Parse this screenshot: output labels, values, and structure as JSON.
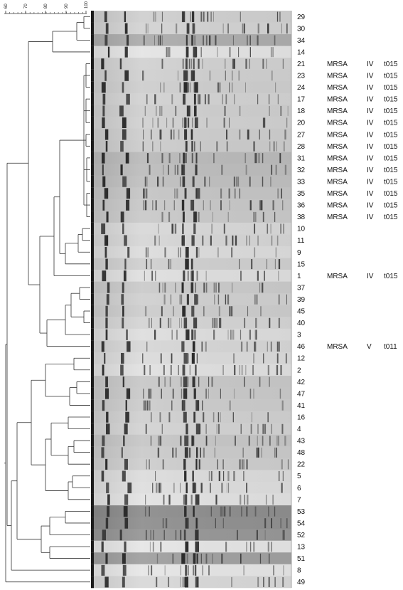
{
  "scale": {
    "ticks": [
      "60",
      "70",
      "80",
      "90",
      "100"
    ]
  },
  "rows": [
    {
      "id": "29",
      "status": "",
      "sccmec": "",
      "spa": ""
    },
    {
      "id": "30",
      "status": "",
      "sccmec": "",
      "spa": ""
    },
    {
      "id": "34",
      "status": "",
      "sccmec": "",
      "spa": ""
    },
    {
      "id": "14",
      "status": "",
      "sccmec": "",
      "spa": ""
    },
    {
      "id": "21",
      "status": "MRSA",
      "sccmec": "IV",
      "spa": "t015"
    },
    {
      "id": "23",
      "status": "MRSA",
      "sccmec": "IV",
      "spa": "t015"
    },
    {
      "id": "24",
      "status": "MRSA",
      "sccmec": "IV",
      "spa": "t015"
    },
    {
      "id": "17",
      "status": "MRSA",
      "sccmec": "IV",
      "spa": "t015"
    },
    {
      "id": "18",
      "status": "MRSA",
      "sccmec": "IV",
      "spa": "t015"
    },
    {
      "id": "20",
      "status": "MRSA",
      "sccmec": "IV",
      "spa": "t015"
    },
    {
      "id": "27",
      "status": "MRSA",
      "sccmec": "IV",
      "spa": "t015"
    },
    {
      "id": "28",
      "status": "MRSA",
      "sccmec": "IV",
      "spa": "t015"
    },
    {
      "id": "31",
      "status": "MRSA",
      "sccmec": "IV",
      "spa": "t015"
    },
    {
      "id": "32",
      "status": "MRSA",
      "sccmec": "IV",
      "spa": "t015"
    },
    {
      "id": "33",
      "status": "MRSA",
      "sccmec": "IV",
      "spa": "t015"
    },
    {
      "id": "35",
      "status": "MRSA",
      "sccmec": "IV",
      "spa": "t015"
    },
    {
      "id": "36",
      "status": "MRSA",
      "sccmec": "IV",
      "spa": "t015"
    },
    {
      "id": "38",
      "status": "MRSA",
      "sccmec": "IV",
      "spa": "t015"
    },
    {
      "id": "10",
      "status": "",
      "sccmec": "",
      "spa": ""
    },
    {
      "id": "11",
      "status": "",
      "sccmec": "",
      "spa": ""
    },
    {
      "id": "9",
      "status": "",
      "sccmec": "",
      "spa": ""
    },
    {
      "id": "15",
      "status": "",
      "sccmec": "",
      "spa": ""
    },
    {
      "id": "1",
      "status": "MRSA",
      "sccmec": "IV",
      "spa": "t015"
    },
    {
      "id": "37",
      "status": "",
      "sccmec": "",
      "spa": ""
    },
    {
      "id": "39",
      "status": "",
      "sccmec": "",
      "spa": ""
    },
    {
      "id": "45",
      "status": "",
      "sccmec": "",
      "spa": ""
    },
    {
      "id": "40",
      "status": "",
      "sccmec": "",
      "spa": ""
    },
    {
      "id": "3",
      "status": "",
      "sccmec": "",
      "spa": ""
    },
    {
      "id": "46",
      "status": "MRSA",
      "sccmec": "V",
      "spa": "t011"
    },
    {
      "id": "12",
      "status": "",
      "sccmec": "",
      "spa": ""
    },
    {
      "id": "2",
      "status": "",
      "sccmec": "",
      "spa": ""
    },
    {
      "id": "42",
      "status": "",
      "sccmec": "",
      "spa": ""
    },
    {
      "id": "47",
      "status": "",
      "sccmec": "",
      "spa": ""
    },
    {
      "id": "41",
      "status": "",
      "sccmec": "",
      "spa": ""
    },
    {
      "id": "16",
      "status": "",
      "sccmec": "",
      "spa": ""
    },
    {
      "id": "4",
      "status": "",
      "sccmec": "",
      "spa": ""
    },
    {
      "id": "43",
      "status": "",
      "sccmec": "",
      "spa": ""
    },
    {
      "id": "48",
      "status": "",
      "sccmec": "",
      "spa": ""
    },
    {
      "id": "22",
      "status": "",
      "sccmec": "",
      "spa": ""
    },
    {
      "id": "5",
      "status": "",
      "sccmec": "",
      "spa": ""
    },
    {
      "id": "6",
      "status": "",
      "sccmec": "",
      "spa": ""
    },
    {
      "id": "7",
      "status": "",
      "sccmec": "",
      "spa": ""
    },
    {
      "id": "53",
      "status": "",
      "sccmec": "",
      "spa": ""
    },
    {
      "id": "54",
      "status": "",
      "sccmec": "",
      "spa": ""
    },
    {
      "id": "52",
      "status": "",
      "sccmec": "",
      "spa": ""
    },
    {
      "id": "13",
      "status": "",
      "sccmec": "",
      "spa": ""
    },
    {
      "id": "51",
      "status": "",
      "sccmec": "",
      "spa": ""
    },
    {
      "id": "8",
      "status": "",
      "sccmec": "",
      "spa": ""
    },
    {
      "id": "49",
      "status": "",
      "sccmec": "",
      "spa": ""
    }
  ]
}
